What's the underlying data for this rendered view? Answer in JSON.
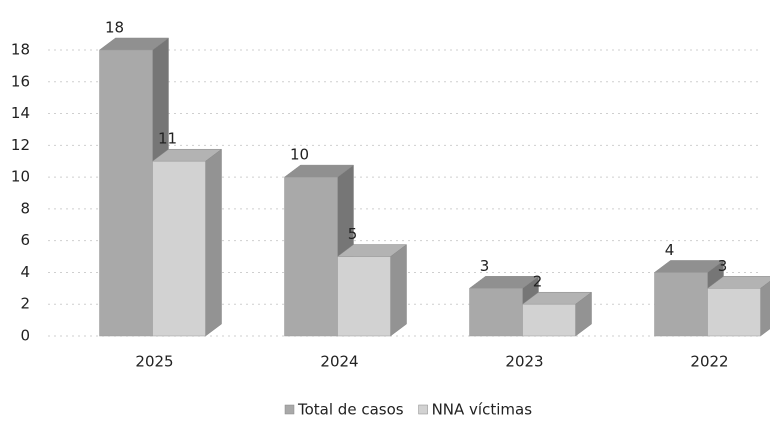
{
  "chart_data": {
    "type": "bar3d",
    "categories": [
      "2025",
      "2024",
      "2023",
      "2022"
    ],
    "series": [
      {
        "name": "Total de casos",
        "color": "#a9a9a9",
        "values": [
          18,
          10,
          3,
          4
        ]
      },
      {
        "name": "NNA víctimas",
        "color": "#d2d2d2",
        "values": [
          11,
          5,
          2,
          3
        ]
      }
    ],
    "ylim": [
      0,
      18
    ],
    "yticks": [
      0,
      2,
      4,
      6,
      8,
      10,
      12,
      14,
      16,
      18
    ],
    "grid": true
  }
}
